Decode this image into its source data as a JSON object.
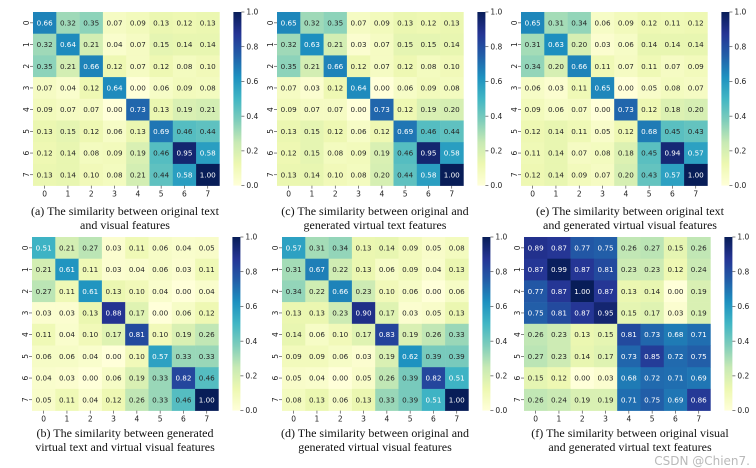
{
  "chart_data": [
    {
      "type": "heatmap",
      "id": "a",
      "caption": [
        "(a) The similarity between original text",
        "and visual features"
      ],
      "x_ticks": [
        "0",
        "1",
        "2",
        "3",
        "4",
        "5",
        "6",
        "7"
      ],
      "y_ticks": [
        "0",
        "1",
        "2",
        "3",
        "4",
        "5",
        "6",
        "7"
      ],
      "colorbar": {
        "range": [
          0,
          1
        ],
        "ticks": [
          "0.0",
          "0.2",
          "0.4",
          "0.6",
          "0.8",
          "1.0"
        ],
        "colormap": "YlGnBu"
      },
      "values": [
        [
          0.66,
          0.32,
          0.35,
          0.07,
          0.09,
          0.13,
          0.12,
          0.13
        ],
        [
          0.32,
          0.64,
          0.21,
          0.04,
          0.07,
          0.15,
          0.14,
          0.14
        ],
        [
          0.35,
          0.21,
          0.66,
          0.12,
          0.07,
          0.12,
          0.08,
          0.1
        ],
        [
          0.07,
          0.04,
          0.12,
          0.64,
          0.0,
          0.06,
          0.09,
          0.08
        ],
        [
          0.09,
          0.07,
          0.07,
          0.0,
          0.73,
          0.13,
          0.19,
          0.21
        ],
        [
          0.13,
          0.15,
          0.12,
          0.06,
          0.13,
          0.69,
          0.46,
          0.44
        ],
        [
          0.12,
          0.14,
          0.08,
          0.09,
          0.19,
          0.46,
          0.95,
          0.58
        ],
        [
          0.13,
          0.14,
          0.1,
          0.08,
          0.21,
          0.44,
          0.58,
          1.0
        ]
      ]
    },
    {
      "type": "heatmap",
      "id": "c",
      "caption": [
        "(c) The similarity  between original and",
        "generated virtual text features"
      ],
      "x_ticks": [
        "0",
        "1",
        "2",
        "3",
        "4",
        "5",
        "6",
        "7"
      ],
      "y_ticks": [
        "0",
        "1",
        "2",
        "3",
        "4",
        "5",
        "6",
        "7"
      ],
      "colorbar": {
        "range": [
          0,
          1
        ],
        "ticks": [
          "0.0",
          "0.2",
          "0.4",
          "0.6",
          "0.8",
          "1.0"
        ],
        "colormap": "YlGnBu"
      },
      "values": [
        [
          0.65,
          0.32,
          0.35,
          0.07,
          0.09,
          0.13,
          0.12,
          0.13
        ],
        [
          0.32,
          0.63,
          0.21,
          0.03,
          0.07,
          0.15,
          0.15,
          0.14
        ],
        [
          0.35,
          0.21,
          0.66,
          0.12,
          0.07,
          0.12,
          0.08,
          0.1
        ],
        [
          0.07,
          0.03,
          0.12,
          0.64,
          0.0,
          0.06,
          0.09,
          0.08
        ],
        [
          0.09,
          0.07,
          0.07,
          0.0,
          0.73,
          0.12,
          0.19,
          0.2
        ],
        [
          0.13,
          0.15,
          0.12,
          0.06,
          0.12,
          0.69,
          0.46,
          0.44
        ],
        [
          0.12,
          0.15,
          0.08,
          0.09,
          0.19,
          0.46,
          0.95,
          0.58
        ],
        [
          0.13,
          0.14,
          0.1,
          0.08,
          0.2,
          0.44,
          0.58,
          1.0
        ]
      ]
    },
    {
      "type": "heatmap",
      "id": "e",
      "caption": [
        "(e) The similarity  between original text",
        "and generated virtual visual features"
      ],
      "x_ticks": [
        "0",
        "1",
        "2",
        "3",
        "4",
        "5",
        "6",
        "7"
      ],
      "y_ticks": [
        "0",
        "1",
        "2",
        "3",
        "4",
        "5",
        "6",
        "7"
      ],
      "colorbar": {
        "range": [
          0,
          1
        ],
        "ticks": [
          "0.0",
          "0.2",
          "0.4",
          "0.6",
          "0.8",
          "1.0"
        ],
        "colormap": "YlGnBu"
      },
      "values": [
        [
          0.65,
          0.31,
          0.34,
          0.06,
          0.09,
          0.12,
          0.11,
          0.12
        ],
        [
          0.31,
          0.63,
          0.2,
          0.03,
          0.06,
          0.14,
          0.14,
          0.14
        ],
        [
          0.34,
          0.2,
          0.66,
          0.11,
          0.07,
          0.11,
          0.07,
          0.09
        ],
        [
          0.06,
          0.03,
          0.11,
          0.65,
          0.0,
          0.05,
          0.08,
          0.07
        ],
        [
          0.09,
          0.06,
          0.07,
          0.0,
          0.73,
          0.12,
          0.18,
          0.2
        ],
        [
          0.12,
          0.14,
          0.11,
          0.05,
          0.12,
          0.68,
          0.45,
          0.43
        ],
        [
          0.11,
          0.14,
          0.07,
          0.08,
          0.18,
          0.45,
          0.94,
          0.57
        ],
        [
          0.12,
          0.14,
          0.09,
          0.07,
          0.2,
          0.43,
          0.57,
          1.0
        ]
      ]
    },
    {
      "type": "heatmap",
      "id": "b",
      "caption": [
        "(b) The similarity between generated",
        "virtual text and virtual visual features"
      ],
      "x_ticks": [
        "0",
        "1",
        "2",
        "3",
        "4",
        "5",
        "6",
        "7"
      ],
      "y_ticks": [
        "0",
        "1",
        "2",
        "3",
        "4",
        "5",
        "6",
        "7"
      ],
      "colorbar": {
        "range": [
          0,
          1
        ],
        "ticks": [
          "0.0",
          "0.2",
          "0.4",
          "0.6",
          "0.8",
          "1.0"
        ],
        "colormap": "YlGnBu"
      },
      "values": [
        [
          0.51,
          0.21,
          0.27,
          0.03,
          0.11,
          0.06,
          0.04,
          0.05
        ],
        [
          0.21,
          0.61,
          0.11,
          0.03,
          0.04,
          0.06,
          0.03,
          0.11
        ],
        [
          0.27,
          0.11,
          0.61,
          0.13,
          0.1,
          0.04,
          0.0,
          0.04
        ],
        [
          0.03,
          0.03,
          0.13,
          0.88,
          0.17,
          0.0,
          0.06,
          0.12
        ],
        [
          0.11,
          0.04,
          0.1,
          0.17,
          0.81,
          0.1,
          0.19,
          0.26
        ],
        [
          0.06,
          0.06,
          0.04,
          0.0,
          0.1,
          0.57,
          0.33,
          0.33
        ],
        [
          0.04,
          0.03,
          0.0,
          0.06,
          0.19,
          0.33,
          0.82,
          0.46
        ],
        [
          0.05,
          0.11,
          0.04,
          0.12,
          0.26,
          0.33,
          0.46,
          1.0
        ]
      ]
    },
    {
      "type": "heatmap",
      "id": "d",
      "caption": [
        "(d) The similarity between original and",
        "generated virtual  visual features"
      ],
      "x_ticks": [
        "0",
        "1",
        "2",
        "3",
        "4",
        "5",
        "6",
        "7"
      ],
      "y_ticks": [
        "0",
        "1",
        "2",
        "3",
        "4",
        "5",
        "6",
        "7"
      ],
      "colorbar": {
        "range": [
          0,
          1
        ],
        "ticks": [
          "0.0",
          "0.2",
          "0.4",
          "0.6",
          "0.8",
          "1.0"
        ],
        "colormap": "YlGnBu"
      },
      "values": [
        [
          0.57,
          0.31,
          0.34,
          0.13,
          0.14,
          0.09,
          0.05,
          0.08
        ],
        [
          0.31,
          0.67,
          0.22,
          0.13,
          0.06,
          0.09,
          0.04,
          0.13
        ],
        [
          0.34,
          0.22,
          0.66,
          0.23,
          0.1,
          0.06,
          0.0,
          0.06
        ],
        [
          0.13,
          0.13,
          0.23,
          0.9,
          0.17,
          0.03,
          0.05,
          0.13
        ],
        [
          0.14,
          0.06,
          0.1,
          0.17,
          0.83,
          0.19,
          0.26,
          0.33
        ],
        [
          0.09,
          0.09,
          0.06,
          0.03,
          0.19,
          0.62,
          0.39,
          0.39
        ],
        [
          0.05,
          0.04,
          0.0,
          0.05,
          0.26,
          0.39,
          0.82,
          0.51
        ],
        [
          0.08,
          0.13,
          0.06,
          0.13,
          0.33,
          0.39,
          0.51,
          1.0
        ]
      ]
    },
    {
      "type": "heatmap",
      "id": "f",
      "caption": [
        "(f) The similarity between original visual",
        "and generated virtual text features"
      ],
      "x_ticks": [
        "0",
        "1",
        "2",
        "3",
        "4",
        "5",
        "6",
        "7"
      ],
      "y_ticks": [
        "0",
        "1",
        "2",
        "3",
        "4",
        "5",
        "6",
        "7"
      ],
      "colorbar": {
        "range": [
          0,
          1
        ],
        "ticks": [
          "0.0",
          "0.2",
          "0.4",
          "0.6",
          "0.8",
          "1.0"
        ],
        "colormap": "YlGnBu"
      },
      "values": [
        [
          0.89,
          0.87,
          0.77,
          0.75,
          0.26,
          0.27,
          0.15,
          0.26
        ],
        [
          0.87,
          0.99,
          0.87,
          0.81,
          0.23,
          0.23,
          0.12,
          0.24
        ],
        [
          0.77,
          0.87,
          1.0,
          0.87,
          0.13,
          0.14,
          0.0,
          0.19
        ],
        [
          0.75,
          0.81,
          0.87,
          0.95,
          0.15,
          0.17,
          0.03,
          0.19
        ],
        [
          0.26,
          0.23,
          0.13,
          0.15,
          0.81,
          0.73,
          0.68,
          0.71
        ],
        [
          0.27,
          0.23,
          0.14,
          0.17,
          0.73,
          0.85,
          0.72,
          0.75
        ],
        [
          0.15,
          0.12,
          0.0,
          0.03,
          0.68,
          0.72,
          0.71,
          0.69
        ],
        [
          0.26,
          0.24,
          0.19,
          0.19,
          0.71,
          0.75,
          0.69,
          0.86
        ]
      ]
    }
  ],
  "watermark": "CSDN @Chien7."
}
